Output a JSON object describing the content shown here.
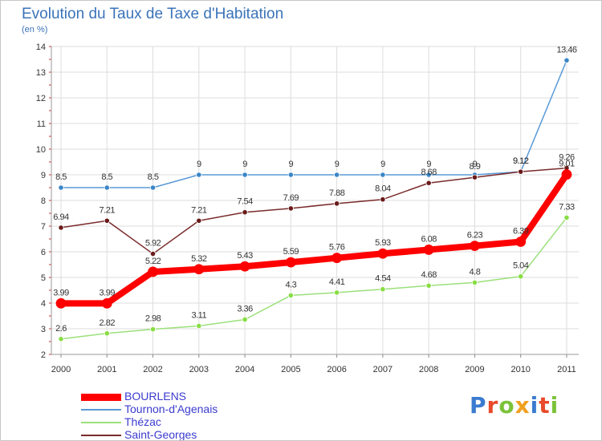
{
  "header": {
    "title": "Evolution du Taux de Taxe d'Habitation",
    "subtitle": "(en %)"
  },
  "logo_text": "Proxiti",
  "chart_data": {
    "type": "line",
    "x": [
      "2000",
      "2001",
      "2002",
      "2003",
      "2004",
      "2005",
      "2006",
      "2007",
      "2008",
      "2009",
      "2010",
      "2011"
    ],
    "ylim": [
      2,
      14
    ],
    "yticks": [
      2,
      3,
      4,
      5,
      6,
      7,
      8,
      9,
      10,
      11,
      12,
      13,
      14
    ],
    "grid": true,
    "legend_position": "bottom-left",
    "series": [
      {
        "name": "BOURLENS",
        "color": "#ff0000",
        "values": [
          3.99,
          3.99,
          5.22,
          5.32,
          5.43,
          5.59,
          5.76,
          5.93,
          6.08,
          6.23,
          6.39,
          9.01
        ],
        "labels": [
          "3.99",
          "3.99",
          "5.22",
          "5.32",
          "5.43",
          "5.59",
          "5.76",
          "5.93",
          "6.08",
          "6.23",
          "6.39",
          "9.01"
        ]
      },
      {
        "name": "Tournon-d'Agenais",
        "color": "#5a9ad6",
        "values": [
          8.5,
          8.5,
          8.5,
          9,
          9,
          9,
          9,
          9,
          9,
          9,
          9.12,
          13.46
        ],
        "labels": [
          "8.5",
          "8.5",
          "8.5",
          "9",
          "9",
          "9",
          "9",
          "9",
          "9",
          "9",
          "9.12",
          "13.46"
        ]
      },
      {
        "name": "Thézac",
        "color": "#9be07a",
        "values": [
          2.6,
          2.82,
          2.98,
          3.11,
          3.36,
          4.3,
          4.41,
          4.54,
          4.68,
          4.8,
          5.04,
          7.33
        ],
        "labels": [
          "2.6",
          "2.82",
          "2.98",
          "3.11",
          "3.36",
          "4.3",
          "4.41",
          "4.54",
          "4.68",
          "4.8",
          "5.04",
          "7.33"
        ]
      },
      {
        "name": "Saint-Georges",
        "color": "#7a2a2a",
        "values": [
          6.94,
          7.21,
          5.92,
          7.21,
          7.54,
          7.69,
          7.88,
          8.04,
          8.68,
          8.9,
          9.12,
          9.26
        ],
        "labels": [
          "6.94",
          "7.21",
          "5.92",
          "7.21",
          "7.54",
          "7.69",
          "7.88",
          "8.04",
          "8.68",
          "8.9",
          "9.12",
          "9.26"
        ]
      }
    ]
  }
}
